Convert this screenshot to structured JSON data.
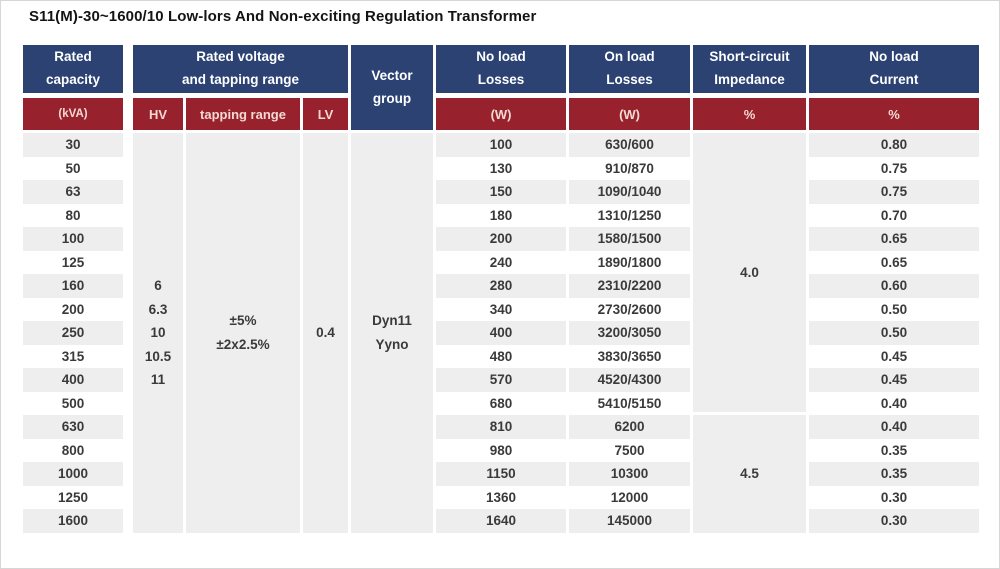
{
  "title": "S11(M)-30~1600/10 Low-lors And Non-exciting Regulation Transformer",
  "colors": {
    "header_blue": "#2b4273",
    "header_red": "#97222d",
    "header_red_text": "#f2dad2",
    "stripe_gray": "#efeeee",
    "body_text": "#3a3a3a"
  },
  "table": {
    "header": {
      "capacity": {
        "title": "Rated\ncapacity",
        "unit": "(kVA)"
      },
      "voltage_group": {
        "title": "Rated voltage\nand tapping range"
      },
      "voltage_sub": [
        "HV",
        "tapping range",
        "LV"
      ],
      "vector": {
        "title": "Vector\ngroup"
      },
      "no_load_losses": {
        "title": "No load\nLosses",
        "unit": "(W)"
      },
      "on_load_losses": {
        "title": "On load\nLosses",
        "unit": "(W)"
      },
      "impedance": {
        "title": "Short-circuit\nImpedance",
        "unit": "%"
      },
      "no_load_current": {
        "title": "No load\nCurrent",
        "unit": "%"
      }
    },
    "merged": {
      "hv_values": [
        "6",
        "6.3",
        "10",
        "10.5",
        "11"
      ],
      "tapping_range": [
        "±5%",
        "±2x2.5%"
      ],
      "lv_value": "0.4",
      "vector_group": [
        "Dyn11",
        "Yyno"
      ]
    },
    "impedance_groups": [
      {
        "value": "4.0",
        "rows": 12
      },
      {
        "value": "4.5",
        "rows": 5
      }
    ],
    "rows": [
      {
        "capacity": "30",
        "no_load_losses": "100",
        "on_load_losses": "630/600",
        "no_load_current": "0.80"
      },
      {
        "capacity": "50",
        "no_load_losses": "130",
        "on_load_losses": "910/870",
        "no_load_current": "0.75"
      },
      {
        "capacity": "63",
        "no_load_losses": "150",
        "on_load_losses": "1090/1040",
        "no_load_current": "0.75"
      },
      {
        "capacity": "80",
        "no_load_losses": "180",
        "on_load_losses": "1310/1250",
        "no_load_current": "0.70"
      },
      {
        "capacity": "100",
        "no_load_losses": "200",
        "on_load_losses": "1580/1500",
        "no_load_current": "0.65"
      },
      {
        "capacity": "125",
        "no_load_losses": "240",
        "on_load_losses": "1890/1800",
        "no_load_current": "0.65"
      },
      {
        "capacity": "160",
        "no_load_losses": "280",
        "on_load_losses": "2310/2200",
        "no_load_current": "0.60"
      },
      {
        "capacity": "200",
        "no_load_losses": "340",
        "on_load_losses": "2730/2600",
        "no_load_current": "0.50"
      },
      {
        "capacity": "250",
        "no_load_losses": "400",
        "on_load_losses": "3200/3050",
        "no_load_current": "0.50"
      },
      {
        "capacity": "315",
        "no_load_losses": "480",
        "on_load_losses": "3830/3650",
        "no_load_current": "0.45"
      },
      {
        "capacity": "400",
        "no_load_losses": "570",
        "on_load_losses": "4520/4300",
        "no_load_current": "0.45"
      },
      {
        "capacity": "500",
        "no_load_losses": "680",
        "on_load_losses": "5410/5150",
        "no_load_current": "0.40"
      },
      {
        "capacity": "630",
        "no_load_losses": "810",
        "on_load_losses": "6200",
        "no_load_current": "0.40"
      },
      {
        "capacity": "800",
        "no_load_losses": "980",
        "on_load_losses": "7500",
        "no_load_current": "0.35"
      },
      {
        "capacity": "1000",
        "no_load_losses": "1150",
        "on_load_losses": "10300",
        "no_load_current": "0.35"
      },
      {
        "capacity": "1250",
        "no_load_losses": "1360",
        "on_load_losses": "12000",
        "no_load_current": "0.30"
      },
      {
        "capacity": "1600",
        "no_load_losses": "1640",
        "on_load_losses": "145000",
        "no_load_current": "0.30"
      }
    ]
  }
}
